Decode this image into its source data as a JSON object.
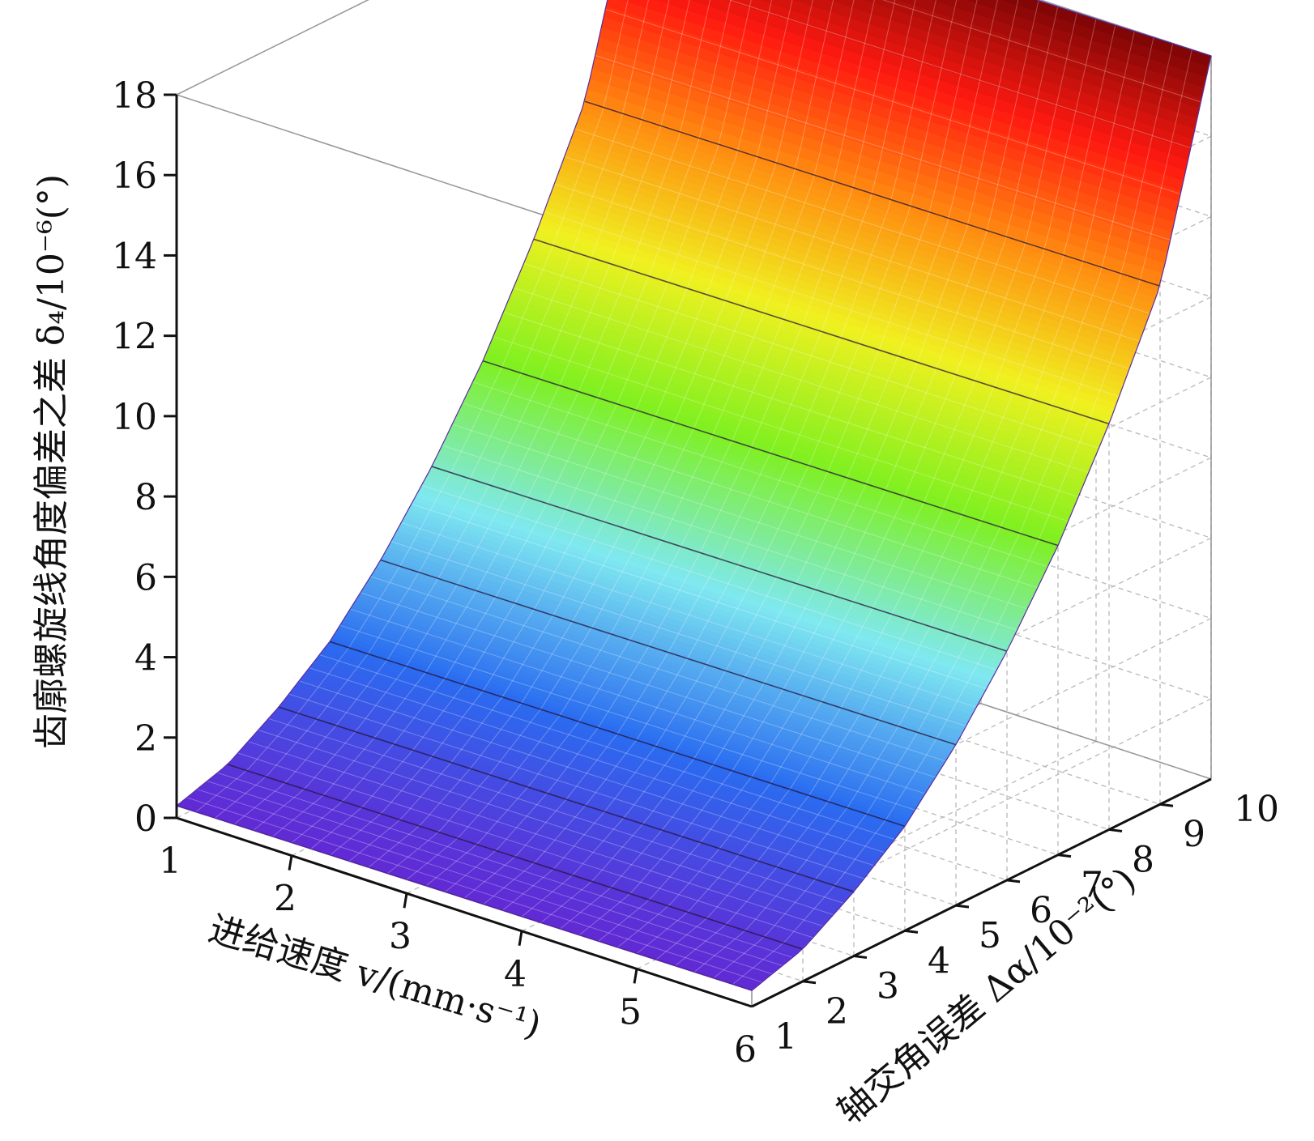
{
  "chart_data": {
    "type": "surface3d",
    "title": "",
    "xlabel": "进给速度 v/(mm·s⁻¹)",
    "ylabel": "轴交角误差 Δα/10⁻²(°)",
    "zlabel": "齿廓螺旋线角度偏差之差 δ₄/10⁻⁶(°)",
    "x_ticks": [
      "1",
      "2",
      "3",
      "4",
      "5",
      "6"
    ],
    "y_ticks": [
      "1",
      "2",
      "3",
      "4",
      "5",
      "6",
      "7",
      "8",
      "9",
      "10"
    ],
    "z_ticks": [
      "0",
      "2",
      "4",
      "6",
      "8",
      "10",
      "12",
      "14",
      "16",
      "18"
    ],
    "xlim": [
      1,
      6
    ],
    "ylim": [
      1,
      10
    ],
    "zlim": [
      0,
      18
    ],
    "grid": true,
    "colormap": [
      "#6a1fd0",
      "#2a6cf0",
      "#7fe8f0",
      "#7ff020",
      "#f0f020",
      "#ff8a10",
      "#ff1a10",
      "#7a0505"
    ],
    "surface": {
      "dalpha": [
        1,
        2,
        3,
        4,
        5,
        6,
        7,
        8,
        9,
        10
      ],
      "delta4_at_v_1": [
        0.3,
        0.7,
        1.5,
        2.5,
        3.9,
        5.6,
        7.6,
        10.0,
        12.8,
        17.9
      ],
      "delta4_at_v_6": [
        0.4,
        0.8,
        1.6,
        2.6,
        4.0,
        5.7,
        7.7,
        10.1,
        12.9,
        18.0
      ]
    }
  }
}
